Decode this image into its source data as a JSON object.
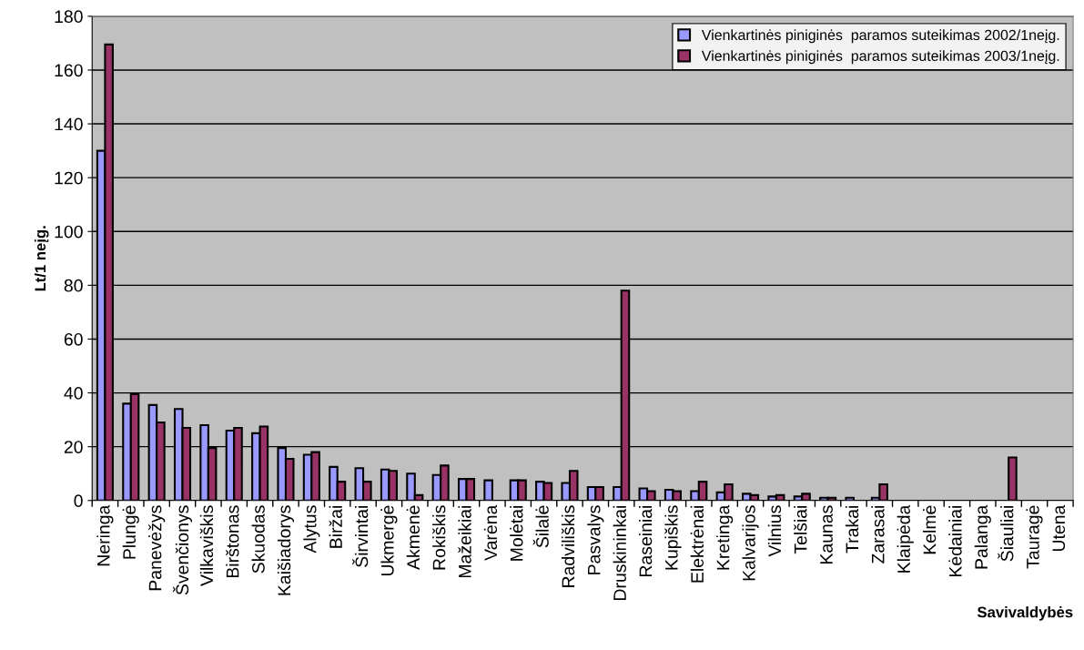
{
  "chart_data": {
    "type": "bar",
    "xlabel": "Savivaldybės",
    "ylabel": "Lt/1 neįg.",
    "categories": [
      "Neringa",
      "Plungė",
      "Panevėžys",
      "Švenčionys",
      "Vilkaviškis",
      "Birštonas",
      "Skuodas",
      "Kaišiadorys",
      "Alytus",
      "Biržai",
      "Širvintai",
      "Ukmergė",
      "Akmenė",
      "Rokiškis",
      "Mažeikiai",
      "Varėna",
      "Molėtai",
      "Šilalė",
      "Radviliškis",
      "Pasvalys",
      "Druskininkai",
      "Raseiniai",
      "Kupiškis",
      "Elektrėnai",
      "Kretinga",
      "Kalvarijos",
      "Vilnius",
      "Telšiai",
      "Kaunas",
      "Trakai",
      "Zarasai",
      "Klaipėda",
      "Kelmė",
      "Kėdainiai",
      "Palanga",
      "Šiauliai",
      "Tauragė",
      "Utena"
    ],
    "series": [
      {
        "name": "Vienkartinės piniginės  paramos suteikimas 2002/1neįg.",
        "color": "#9999ff",
        "values": [
          130,
          36,
          35.5,
          34,
          28,
          26,
          25,
          19.5,
          17,
          12.5,
          12,
          11.5,
          10,
          9.5,
          8,
          7.5,
          7.5,
          7,
          6.5,
          5,
          5,
          4.5,
          4,
          3.5,
          3,
          2.5,
          1.5,
          1.5,
          1,
          1,
          1,
          null,
          null,
          null,
          null,
          null,
          null,
          null
        ]
      },
      {
        "name": "Vienkartinės piniginės  paramos suteikimas 2003/1neįg.",
        "color": "#993366",
        "values": [
          169.5,
          39.5,
          29,
          27,
          19.5,
          27,
          27.5,
          15.5,
          18,
          7,
          7,
          11,
          2,
          13,
          8,
          null,
          7.5,
          6.5,
          11,
          5,
          78,
          3.5,
          3.5,
          7,
          6,
          2,
          2,
          2.5,
          1,
          null,
          6,
          null,
          null,
          null,
          null,
          16,
          null,
          null
        ]
      }
    ],
    "ylim": [
      0,
      180
    ],
    "yticks": [
      0,
      20,
      40,
      60,
      80,
      100,
      120,
      140,
      160,
      180
    ],
    "grid": "y",
    "legend": "top right"
  }
}
